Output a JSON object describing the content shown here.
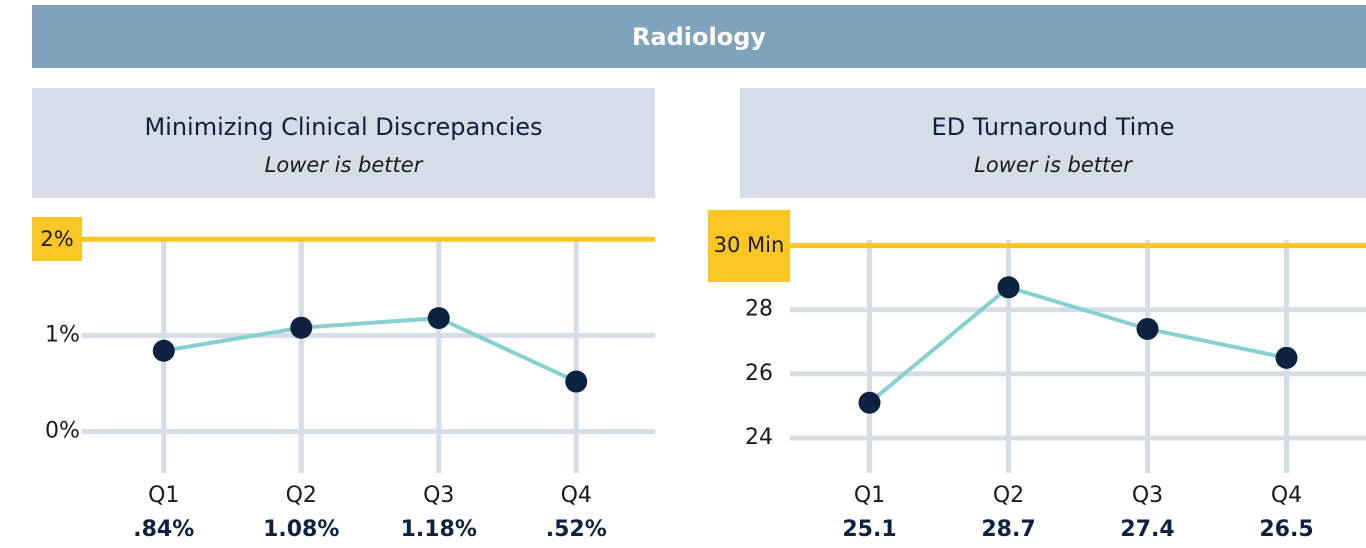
{
  "header": {
    "title": "Radiology"
  },
  "chart_data": [
    {
      "type": "line",
      "title": "Minimizing Clinical Discrepancies",
      "subtitle": "Lower is better",
      "categories": [
        "Q1",
        "Q2",
        "Q3",
        "Q4"
      ],
      "values": [
        0.84,
        1.08,
        1.18,
        0.52
      ],
      "value_labels": [
        ".84%",
        "1.08%",
        "1.18%",
        ".52%"
      ],
      "color": "#86d0d0",
      "marker_color": "#0d2240",
      "ylim": [
        -0.4,
        2.2
      ],
      "yticks": [
        {
          "value": 0,
          "label": "0%"
        },
        {
          "value": 1,
          "label": "1%"
        }
      ],
      "target": {
        "value": 2,
        "label": "2%",
        "color": "#f9c623"
      },
      "grid": true
    },
    {
      "type": "line",
      "title": "ED Turnaround Time",
      "subtitle": "Lower is better",
      "categories": [
        "Q1",
        "Q2",
        "Q3",
        "Q4"
      ],
      "values": [
        25.1,
        28.7,
        27.4,
        26.5
      ],
      "color": "#86d0d0",
      "marker_color": "#0d2240",
      "ylim": [
        23,
        30.8
      ],
      "yticks": [
        24,
        26,
        28
      ],
      "target": {
        "value": 30,
        "label": "30 Min",
        "color": "#f9c623"
      },
      "grid": true
    }
  ]
}
